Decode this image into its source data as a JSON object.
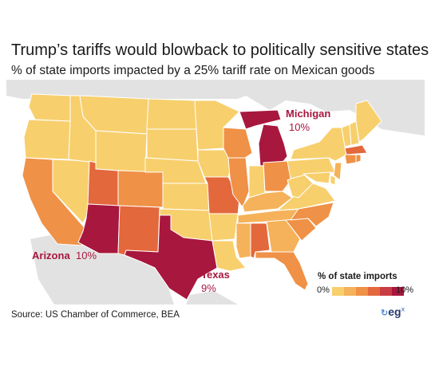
{
  "title": "Trump’s tariffs would blowback to politically sensitive states",
  "subtitle": "% of state imports impacted by a 25% tariff rate on Mexican goods",
  "callouts": {
    "michigan": {
      "name": "Michigan",
      "value": "10%"
    },
    "arizona": {
      "name": "Arizona",
      "value": "10%"
    },
    "texas": {
      "name": "Texas",
      "value": "9%"
    }
  },
  "legend": {
    "title": "% of state imports",
    "min_label": "0%",
    "max_label": "10%",
    "colors": [
      "#f7cf6d",
      "#f5b25a",
      "#ef9146",
      "#e3683c",
      "#c93c43",
      "#a8173e"
    ]
  },
  "source": "Source: US Chamber of Commerce, BEA",
  "logo": {
    "text": "eg",
    "superscript": "x"
  },
  "colors": {
    "callout_text": "#a8173e",
    "no_data_land": "#e2e2e2"
  },
  "states": [
    {
      "name": "Washington",
      "level": 0
    },
    {
      "name": "Oregon",
      "level": 0
    },
    {
      "name": "California",
      "level": 2
    },
    {
      "name": "Nevada",
      "level": 0
    },
    {
      "name": "Idaho",
      "level": 0
    },
    {
      "name": "Montana",
      "level": 0
    },
    {
      "name": "Wyoming",
      "level": 0
    },
    {
      "name": "Utah",
      "level": 3
    },
    {
      "name": "Arizona",
      "level": 5
    },
    {
      "name": "Colorado",
      "level": 2
    },
    {
      "name": "New Mexico",
      "level": 3
    },
    {
      "name": "North Dakota",
      "level": 0
    },
    {
      "name": "South Dakota",
      "level": 0
    },
    {
      "name": "Nebraska",
      "level": 0
    },
    {
      "name": "Kansas",
      "level": 0
    },
    {
      "name": "Oklahoma",
      "level": 0
    },
    {
      "name": "Texas",
      "level": 5
    },
    {
      "name": "Minnesota",
      "level": 0
    },
    {
      "name": "Iowa",
      "level": 0
    },
    {
      "name": "Missouri",
      "level": 3
    },
    {
      "name": "Arkansas",
      "level": 0
    },
    {
      "name": "Louisiana",
      "level": 0
    },
    {
      "name": "Wisconsin",
      "level": 2
    },
    {
      "name": "Illinois",
      "level": 2
    },
    {
      "name": "Michigan",
      "level": 5
    },
    {
      "name": "Indiana",
      "level": 0
    },
    {
      "name": "Ohio",
      "level": 2
    },
    {
      "name": "Kentucky",
      "level": 1
    },
    {
      "name": "Tennessee",
      "level": 1
    },
    {
      "name": "Mississippi",
      "level": 1
    },
    {
      "name": "Alabama",
      "level": 3
    },
    {
      "name": "Georgia",
      "level": 1
    },
    {
      "name": "Florida",
      "level": 2
    },
    {
      "name": "South Carolina",
      "level": 2
    },
    {
      "name": "North Carolina",
      "level": 2
    },
    {
      "name": "Virginia",
      "level": 0
    },
    {
      "name": "West Virginia",
      "level": 0
    },
    {
      "name": "Pennsylvania",
      "level": 0
    },
    {
      "name": "New York",
      "level": 0
    },
    {
      "name": "Vermont",
      "level": 0
    },
    {
      "name": "New Hampshire",
      "level": 0
    },
    {
      "name": "Maine",
      "level": 0
    },
    {
      "name": "Massachusetts",
      "level": 3
    },
    {
      "name": "Connecticut",
      "level": 2
    },
    {
      "name": "Rhode Island",
      "level": 2
    },
    {
      "name": "New Jersey",
      "level": 1
    },
    {
      "name": "Delaware",
      "level": 0
    },
    {
      "name": "Maryland",
      "level": 0
    }
  ]
}
